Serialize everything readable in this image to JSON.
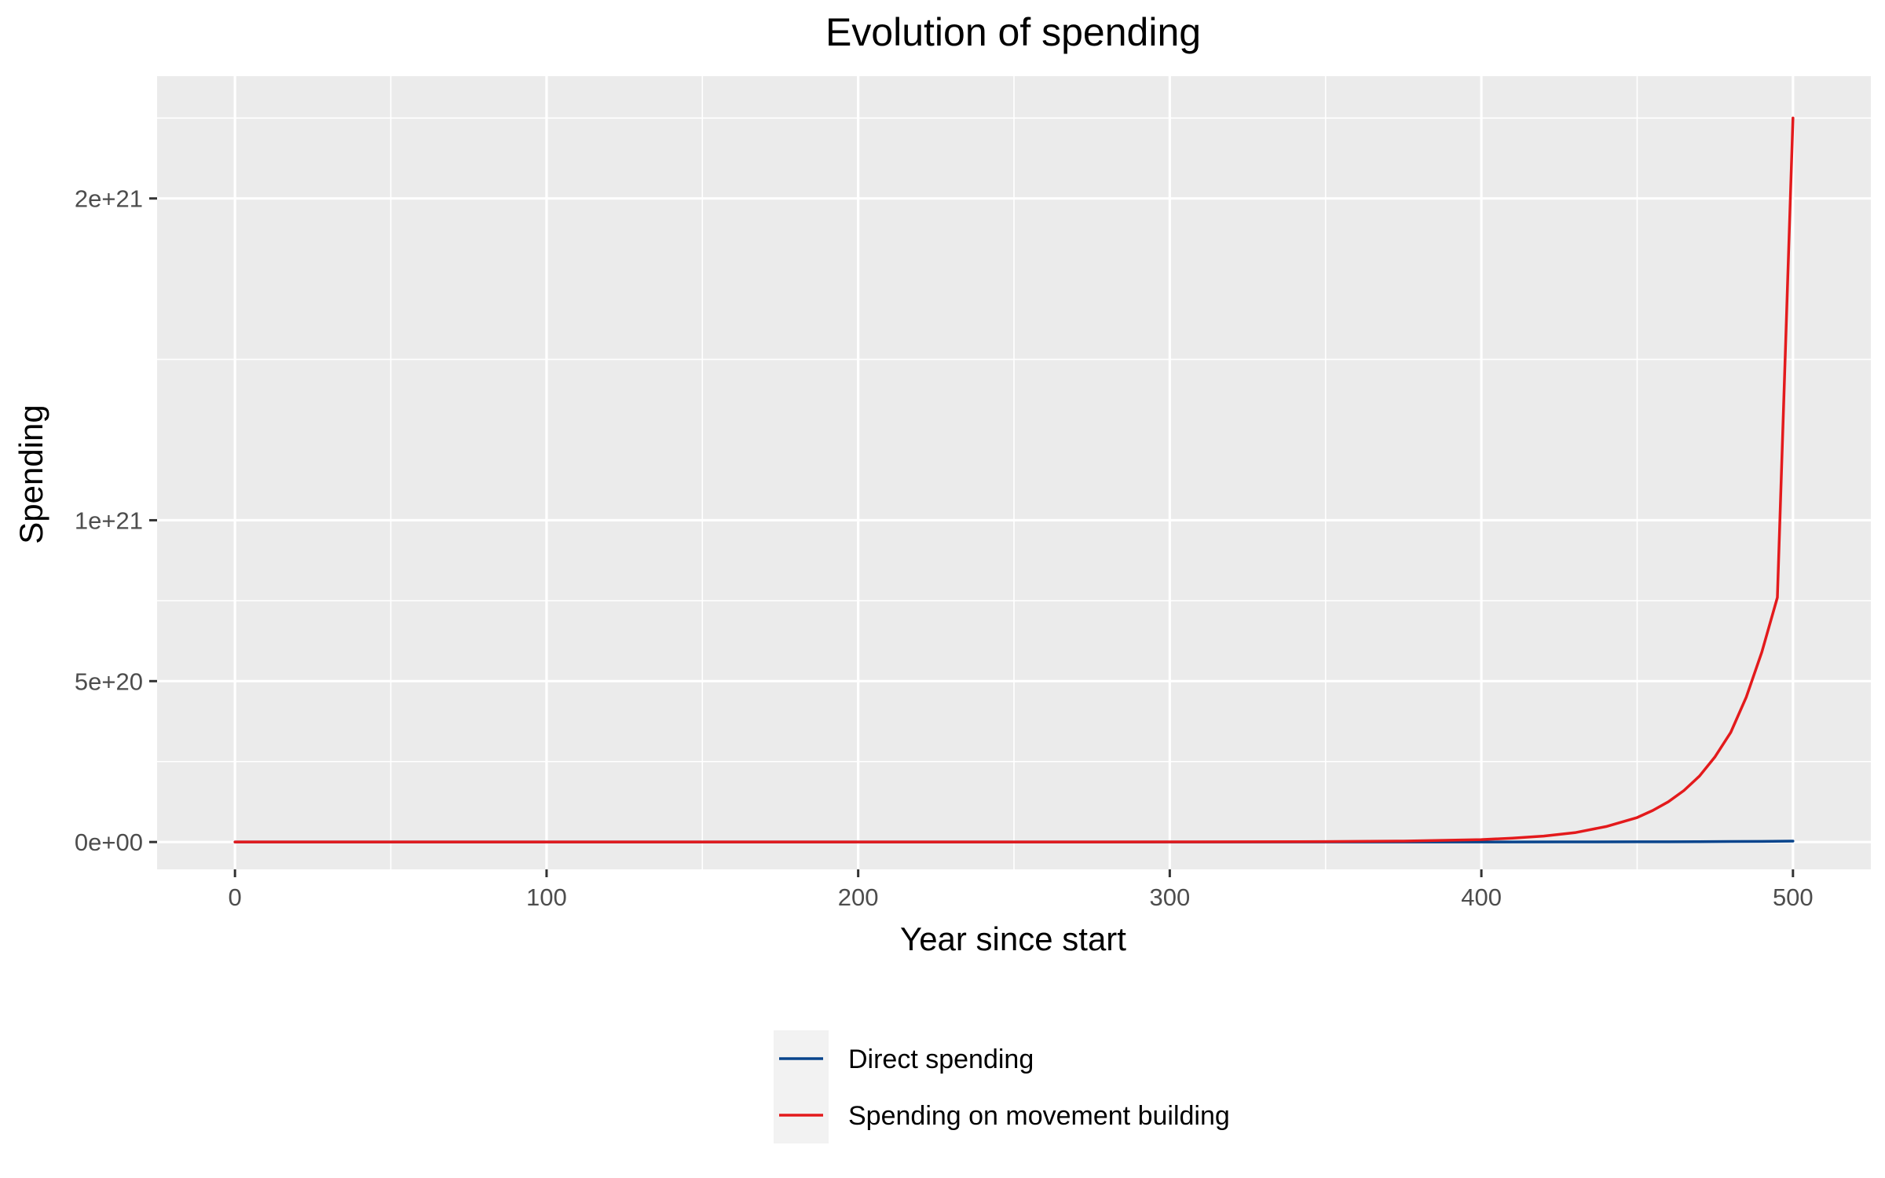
{
  "chart_data": {
    "type": "line",
    "title": "Evolution of spending",
    "xlabel": "Year since start",
    "ylabel": "Spending",
    "xlim": [
      -25,
      525
    ],
    "ylim": [
      -8.5e+19,
      2.38e+21
    ],
    "x_ticks": [
      0,
      100,
      200,
      300,
      400,
      500
    ],
    "x_tick_labels": [
      "0",
      "100",
      "200",
      "300",
      "400",
      "500"
    ],
    "x_minor_ticks": [
      50,
      150,
      250,
      350,
      450
    ],
    "y_ticks": [
      0,
      5e+20,
      1e+21,
      2e+21
    ],
    "y_tick_labels": [
      "0e+00",
      "5e+20",
      "1e+21",
      "2e+21"
    ],
    "y_minor_ticks": [
      2.5e+20,
      7.5e+20,
      1.5e+21,
      2.25e+21
    ],
    "grid": true,
    "panel_background": "#EBEBEB",
    "grid_color": "#FFFFFF",
    "legend_position": "bottom",
    "series": [
      {
        "name": "Direct spending",
        "color": "#08448C",
        "x": [
          0,
          50,
          100,
          150,
          200,
          250,
          300,
          350,
          400,
          425,
          450,
          460,
          470,
          480,
          490,
          500
        ],
        "y": [
          0,
          0,
          0,
          0,
          0,
          0,
          0,
          0,
          0,
          3e+17,
          6e+17,
          8e+17,
          1.1e+18,
          1.5e+18,
          2e+18,
          2.8e+18
        ]
      },
      {
        "name": "Spending on movement building",
        "color": "#E31A1C",
        "x": [
          0,
          50,
          100,
          150,
          200,
          250,
          300,
          325,
          350,
          375,
          400,
          410,
          420,
          430,
          440,
          450,
          455,
          460,
          465,
          470,
          475,
          480,
          485,
          490,
          495,
          500
        ],
        "y": [
          0,
          0,
          0,
          0,
          0,
          0,
          3e+17,
          6e+17,
          1.2e+18,
          3e+18,
          7.5e+18,
          1.2e+19,
          1.85e+19,
          2.9e+19,
          4.8e+19,
          7.6e+19,
          9.8e+19,
          1.25e+20,
          1.6e+20,
          2.05e+20,
          2.65e+20,
          3.4e+20,
          4.5e+20,
          5.9e+20,
          7.6e+20,
          2.25e+21
        ]
      }
    ]
  }
}
